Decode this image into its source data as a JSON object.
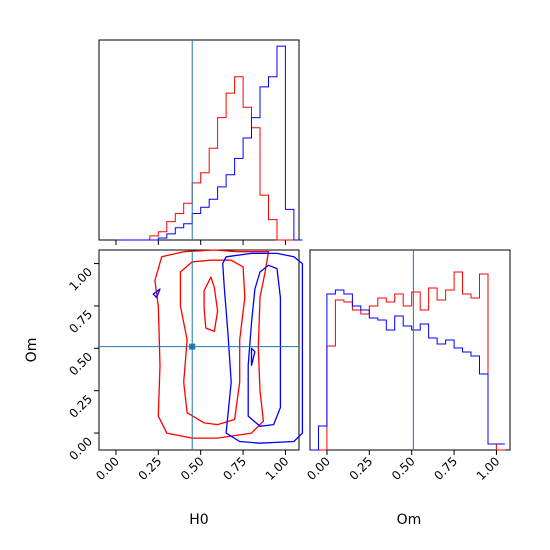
{
  "chart_data": {
    "type": "corner",
    "parameters": [
      "H0",
      "Om"
    ],
    "truth": {
      "H0": 0.45,
      "Om": 0.51
    },
    "truth_color": "#1f77b4",
    "series_colors": [
      "#ff0000",
      "#0000ff"
    ],
    "axes": {
      "H0": {
        "xlabel": "H0",
        "lim": [
          -0.1,
          1.08
        ],
        "ticks": [
          "0.00",
          "0.25",
          "0.50",
          "0.75",
          "1.00"
        ],
        "tick_values": [
          0,
          0.25,
          0.5,
          0.75,
          1.0
        ]
      },
      "Om": {
        "xlabel": "Om",
        "ylabel": "Om",
        "lim": [
          -0.1,
          1.08
        ],
        "ticks": [
          "0.00",
          "0.25",
          "0.50",
          "0.75",
          "1.00"
        ],
        "tick_values": [
          0,
          0.25,
          0.5,
          0.75,
          1.0
        ]
      }
    },
    "hist_H0": {
      "bin_edges": [
        0.0,
        0.05,
        0.1,
        0.15,
        0.2,
        0.25,
        0.3,
        0.35,
        0.4,
        0.45,
        0.5,
        0.55,
        0.6,
        0.65,
        0.7,
        0.75,
        0.8,
        0.85,
        0.9,
        0.95,
        1.0,
        1.05,
        1.1
      ],
      "series": [
        {
          "color": "#ff0000",
          "counts": [
            0,
            0,
            0,
            0,
            0.02,
            0.04,
            0.09,
            0.13,
            0.18,
            0.28,
            0.33,
            0.45,
            0.6,
            0.72,
            0.8,
            0.65,
            0.55,
            0.22,
            0.1,
            0,
            0,
            0
          ]
        },
        {
          "color": "#0000ff",
          "counts": [
            0,
            0,
            0,
            0,
            0,
            0.01,
            0.03,
            0.06,
            0.08,
            0.13,
            0.16,
            0.2,
            0.26,
            0.32,
            0.4,
            0.5,
            0.6,
            0.75,
            0.8,
            0.95,
            0.15,
            0
          ]
        }
      ]
    },
    "hist_Om": {
      "bin_edges": [
        -0.1,
        -0.05,
        0.0,
        0.05,
        0.1,
        0.15,
        0.2,
        0.25,
        0.3,
        0.35,
        0.4,
        0.45,
        0.5,
        0.55,
        0.6,
        0.65,
        0.7,
        0.75,
        0.8,
        0.85,
        0.9,
        0.95,
        1.0,
        1.05
      ],
      "series": [
        {
          "color": "#ff0000",
          "counts": [
            0,
            0,
            0.52,
            0.75,
            0.74,
            0.7,
            0.68,
            0.72,
            0.76,
            0.74,
            0.78,
            0.72,
            0.79,
            0.7,
            0.81,
            0.75,
            0.8,
            0.89,
            0.78,
            0.76,
            0.88,
            0.03,
            0
          ]
        },
        {
          "color": "#0000ff",
          "counts": [
            0,
            0.12,
            0.78,
            0.8,
            0.78,
            0.72,
            0.7,
            0.66,
            0.65,
            0.6,
            0.67,
            0.62,
            0.6,
            0.63,
            0.56,
            0.53,
            0.55,
            0.51,
            0.49,
            0.47,
            0.38,
            0.03,
            0.03
          ]
        }
      ]
    },
    "contours": [
      {
        "color": "#ff0000",
        "paths": [
          [
            [
              0.23,
              0.9
            ],
            [
              0.27,
              1.04
            ],
            [
              0.4,
              1.07
            ],
            [
              0.58,
              1.08
            ],
            [
              0.72,
              1.07
            ],
            [
              0.9,
              1.07
            ],
            [
              0.88,
              0.95
            ],
            [
              0.85,
              0.8
            ],
            [
              0.84,
              0.5
            ],
            [
              0.85,
              0.25
            ],
            [
              0.87,
              0.07
            ],
            [
              0.8,
              0.0
            ],
            [
              0.6,
              -0.03
            ],
            [
              0.45,
              -0.03
            ],
            [
              0.3,
              0.0
            ],
            [
              0.25,
              0.1
            ],
            [
              0.26,
              0.4
            ],
            [
              0.25,
              0.75
            ],
            [
              0.23,
              0.9
            ]
          ],
          [
            [
              0.38,
              0.95
            ],
            [
              0.45,
              1.01
            ],
            [
              0.56,
              1.02
            ],
            [
              0.68,
              1.02
            ],
            [
              0.75,
              0.98
            ],
            [
              0.76,
              0.8
            ],
            [
              0.73,
              0.55
            ],
            [
              0.73,
              0.3
            ],
            [
              0.7,
              0.08
            ],
            [
              0.6,
              0.05
            ],
            [
              0.52,
              0.06
            ],
            [
              0.42,
              0.12
            ],
            [
              0.4,
              0.3
            ],
            [
              0.42,
              0.55
            ],
            [
              0.38,
              0.75
            ],
            [
              0.38,
              0.95
            ]
          ],
          [
            [
              0.52,
              0.84
            ],
            [
              0.56,
              0.92
            ],
            [
              0.58,
              0.86
            ],
            [
              0.6,
              0.72
            ],
            [
              0.58,
              0.6
            ],
            [
              0.53,
              0.62
            ],
            [
              0.52,
              0.74
            ],
            [
              0.52,
              0.84
            ]
          ]
        ]
      },
      {
        "color": "#0000ff",
        "paths": [
          [
            [
              0.63,
              1.0
            ],
            [
              0.65,
              1.04
            ],
            [
              0.8,
              1.06
            ],
            [
              0.95,
              1.06
            ],
            [
              1.05,
              1.04
            ],
            [
              1.1,
              1.0
            ],
            [
              1.1,
              0.5
            ],
            [
              1.1,
              0.0
            ],
            [
              1.05,
              -0.05
            ],
            [
              0.85,
              -0.06
            ],
            [
              0.73,
              -0.05
            ],
            [
              0.65,
              0.0
            ],
            [
              0.68,
              0.3
            ],
            [
              0.66,
              0.6
            ],
            [
              0.64,
              0.85
            ],
            [
              0.63,
              1.0
            ]
          ],
          [
            [
              0.85,
              0.95
            ],
            [
              0.9,
              0.99
            ],
            [
              0.95,
              0.97
            ],
            [
              0.97,
              0.8
            ],
            [
              0.97,
              0.5
            ],
            [
              0.97,
              0.15
            ],
            [
              0.93,
              0.05
            ],
            [
              0.85,
              0.04
            ],
            [
              0.78,
              0.1
            ],
            [
              0.78,
              0.4
            ],
            [
              0.8,
              0.65
            ],
            [
              0.82,
              0.85
            ],
            [
              0.85,
              0.95
            ]
          ],
          [
            [
              0.8,
              0.4
            ],
            [
              0.8,
              0.5
            ],
            [
              0.82,
              0.48
            ],
            [
              0.8,
              0.4
            ]
          ],
          [
            [
              0.22,
              0.82
            ],
            [
              0.26,
              0.85
            ],
            [
              0.24,
              0.8
            ],
            [
              0.22,
              0.82
            ]
          ]
        ]
      }
    ]
  }
}
